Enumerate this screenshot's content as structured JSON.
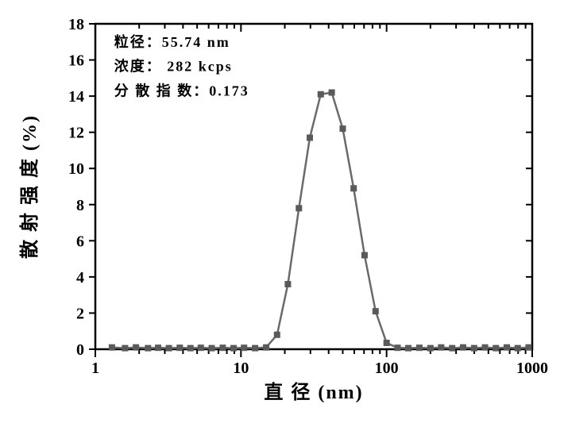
{
  "chart": {
    "type": "line",
    "xlabel": "直 径 (nm)",
    "ylabel": "散 射 强 度 (%)",
    "label_fontsize": 24,
    "tick_fontsize": 20,
    "annot_fontsize": 18,
    "xlim": [
      1,
      1000
    ],
    "ylim": [
      0,
      18
    ],
    "xscale": "log",
    "ytick_step": 2,
    "xticks_major": [
      1,
      10,
      100,
      1000
    ],
    "yticks": [
      0,
      2,
      4,
      6,
      8,
      10,
      12,
      14,
      16,
      18
    ],
    "line_color": "#6a6a6a",
    "marker_color": "#5a5a5a",
    "marker_size": 7,
    "line_width": 2.5,
    "background_color": "#ffffff",
    "axis_line_width": 2.5,
    "tick_line_width": 2,
    "annotations": [
      "粒径：55.74 nm",
      "浓度： 282 kcps",
      "分 散 指 数：0.173"
    ],
    "annotation_box": {
      "x": 1.25,
      "y_top": 17.6,
      "line_height": 1.7
    },
    "data": {
      "x": [
        1.3,
        1.6,
        1.9,
        2.3,
        2.7,
        3.2,
        3.8,
        4.5,
        5.3,
        6.3,
        7.5,
        8.9,
        10.5,
        12.5,
        14.9,
        17.7,
        21,
        25,
        29.7,
        35.3,
        42,
        50,
        59.4,
        70.6,
        84,
        100,
        119,
        141,
        168,
        200,
        237,
        282,
        335,
        399,
        474,
        563,
        669,
        795,
        944
      ],
      "y": [
        0.1,
        0.06,
        0.1,
        0.06,
        0.08,
        0.06,
        0.08,
        0.06,
        0.08,
        0.06,
        0.08,
        0.06,
        0.08,
        0.06,
        0.1,
        0.8,
        3.6,
        7.8,
        11.7,
        14.1,
        14.2,
        12.2,
        8.9,
        5.2,
        2.1,
        0.35,
        0.08,
        0.06,
        0.08,
        0.06,
        0.1,
        0.06,
        0.1,
        0.06,
        0.1,
        0.06,
        0.1,
        0.06,
        0.1
      ]
    }
  }
}
